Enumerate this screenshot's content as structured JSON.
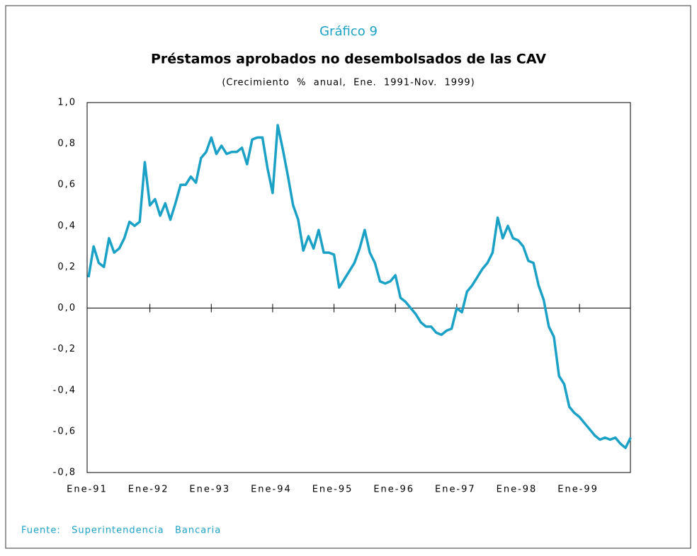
{
  "chart_data": {
    "type": "line",
    "label": "Gráfico 9",
    "title": "Préstamos aprobados no desembolsados de las CAV",
    "subtitle": "(Crecimiento  %  anual,  Ene.  1991-Nov.  1999)",
    "source": "Fuente:   Superintendencia   Bancaria",
    "categories": [
      "Ene-91",
      null,
      null,
      null,
      null,
      null,
      null,
      null,
      null,
      null,
      null,
      null,
      "Ene-92",
      null,
      null,
      null,
      null,
      null,
      null,
      null,
      null,
      null,
      null,
      null,
      "Ene-93",
      null,
      null,
      null,
      null,
      null,
      null,
      null,
      null,
      null,
      null,
      null,
      "Ene-94",
      null,
      null,
      null,
      null,
      null,
      null,
      null,
      null,
      null,
      null,
      null,
      "Ene-95",
      null,
      null,
      null,
      null,
      null,
      null,
      null,
      null,
      null,
      null,
      null,
      "Ene-96",
      null,
      null,
      null,
      null,
      null,
      null,
      null,
      null,
      null,
      null,
      null,
      "Ene-97",
      null,
      null,
      null,
      null,
      null,
      null,
      null,
      null,
      null,
      null,
      null,
      "Ene-98",
      null,
      null,
      null,
      null,
      null,
      null,
      null,
      null,
      null,
      null,
      null,
      "Ene-99",
      null,
      null,
      null,
      null,
      null,
      null,
      null,
      null,
      null,
      null
    ],
    "values": [
      0.15,
      0.3,
      0.22,
      0.2,
      0.34,
      0.27,
      0.29,
      0.34,
      0.42,
      0.4,
      0.42,
      0.71,
      0.5,
      0.53,
      0.45,
      0.51,
      0.43,
      0.51,
      0.6,
      0.6,
      0.64,
      0.61,
      0.73,
      0.76,
      0.83,
      0.75,
      0.79,
      0.75,
      0.76,
      0.76,
      0.78,
      0.7,
      0.82,
      0.83,
      0.83,
      0.68,
      0.56,
      0.89,
      0.77,
      0.64,
      0.5,
      0.43,
      0.28,
      0.35,
      0.29,
      0.38,
      0.27,
      0.27,
      0.26,
      0.1,
      0.14,
      0.18,
      0.22,
      0.29,
      0.38,
      0.27,
      0.22,
      0.13,
      0.12,
      0.13,
      0.16,
      0.05,
      0.03,
      0.0,
      -0.03,
      -0.07,
      -0.09,
      -0.09,
      -0.12,
      -0.13,
      -0.11,
      -0.1,
      0.0,
      -0.02,
      0.08,
      0.11,
      0.15,
      0.19,
      0.22,
      0.27,
      0.44,
      0.34,
      0.4,
      0.34,
      0.33,
      0.3,
      0.23,
      0.22,
      0.11,
      0.04,
      -0.09,
      -0.14,
      -0.33,
      -0.37,
      -0.48,
      -0.51,
      -0.53,
      -0.56,
      -0.59,
      -0.62,
      -0.64,
      -0.63,
      -0.64,
      -0.63,
      -0.66,
      -0.68,
      -0.63
    ],
    "color": "#1ba1c6",
    "ylim": [
      -0.8,
      1.0
    ],
    "yticks": [
      {
        "value": 1.0,
        "label": "1,0"
      },
      {
        "value": 0.8,
        "label": "0,8"
      },
      {
        "value": 0.6,
        "label": "0,6"
      },
      {
        "value": 0.4,
        "label": "0,4"
      },
      {
        "value": 0.2,
        "label": "0,2"
      },
      {
        "value": 0,
        "label": "0,0"
      },
      {
        "value": -0.2,
        "label": "-0,2"
      },
      {
        "value": -0.4,
        "label": "-0,4"
      },
      {
        "value": -0.6,
        "label": "-0,6"
      },
      {
        "value": -0.8,
        "label": "-0,8"
      }
    ]
  }
}
